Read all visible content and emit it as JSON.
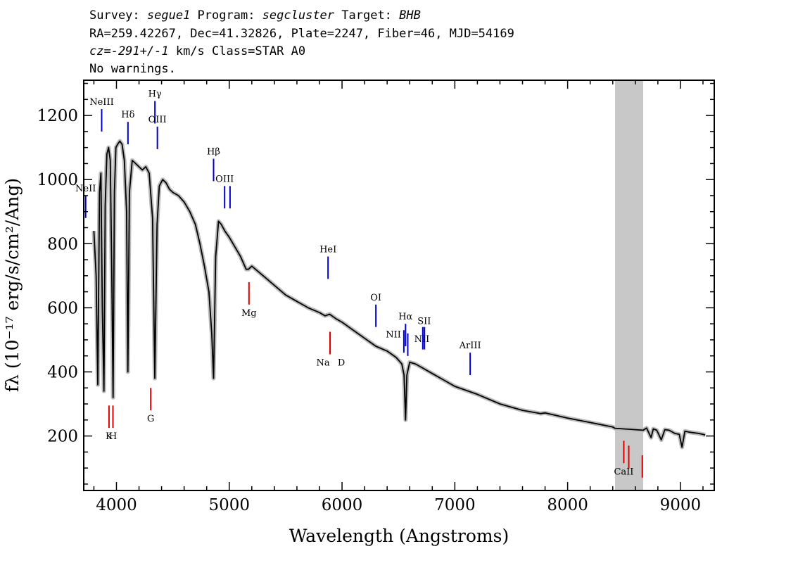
{
  "header": {
    "line1": [
      {
        "text": "Survey: ",
        "italic": false
      },
      {
        "text": "segue1",
        "italic": true
      },
      {
        "text": " Program: ",
        "italic": false
      },
      {
        "text": "segcluster",
        "italic": true
      },
      {
        "text": " Target: ",
        "italic": false
      },
      {
        "text": "BHB",
        "italic": true
      }
    ],
    "line2": "RA=259.42267, Dec=41.32826, Plate=2247, Fiber=46, MJD=54169",
    "line3": [
      {
        "text": "cz=-291+/-1",
        "italic": true
      },
      {
        "text": " km/s Class=STAR A0",
        "italic": false
      }
    ],
    "line4": "No warnings."
  },
  "chart_data": {
    "type": "line",
    "xlabel": "Wavelength (Angstroms)",
    "ylabel": "fλ (10⁻¹⁷ erg/s/cm²/Ang)",
    "xlim": [
      3710,
      9300
    ],
    "ylim": [
      30,
      1310
    ],
    "x_ticks": [
      4000,
      5000,
      6000,
      7000,
      8000,
      9000
    ],
    "y_ticks": [
      200,
      400,
      600,
      800,
      1000,
      1200
    ],
    "masked_region": [
      8420,
      8670
    ],
    "spectrum": {
      "x": [
        3800,
        3820,
        3835,
        3850,
        3862,
        3875,
        3889,
        3900,
        3915,
        3930,
        3945,
        3958,
        3970,
        3982,
        3995,
        4010,
        4030,
        4050,
        4070,
        4090,
        4101,
        4115,
        4140,
        4170,
        4200,
        4230,
        4260,
        4290,
        4320,
        4340,
        4360,
        4380,
        4410,
        4440,
        4470,
        4500,
        4550,
        4600,
        4650,
        4700,
        4740,
        4780,
        4820,
        4845,
        4861,
        4880,
        4905,
        4930,
        4960,
        5000,
        5050,
        5100,
        5150,
        5170,
        5200,
        5300,
        5400,
        5500,
        5600,
        5700,
        5800,
        5850,
        5890,
        5950,
        6000,
        6100,
        6200,
        6300,
        6400,
        6480,
        6530,
        6550,
        6563,
        6575,
        6600,
        6650,
        6700,
        6800,
        6900,
        7000,
        7200,
        7400,
        7600,
        7760,
        7800,
        8000,
        8200,
        8400,
        8420,
        8670,
        8700,
        8740,
        8760,
        8790,
        8830,
        8862,
        8900,
        8950,
        8990,
        9014,
        9040,
        9080,
        9120,
        9160,
        9200,
        9220
      ],
      "y": [
        840,
        700,
        360,
        960,
        1020,
        600,
        340,
        920,
        1080,
        1100,
        1060,
        720,
        320,
        960,
        1100,
        1110,
        1120,
        1110,
        1060,
        900,
        400,
        960,
        1060,
        1050,
        1040,
        1030,
        1040,
        1020,
        880,
        380,
        860,
        980,
        1000,
        990,
        970,
        960,
        950,
        930,
        900,
        860,
        800,
        730,
        650,
        520,
        380,
        760,
        870,
        860,
        840,
        820,
        790,
        760,
        720,
        720,
        730,
        700,
        670,
        640,
        620,
        600,
        585,
        575,
        580,
        565,
        555,
        530,
        505,
        480,
        465,
        445,
        425,
        390,
        250,
        390,
        430,
        425,
        415,
        395,
        375,
        355,
        330,
        300,
        280,
        270,
        272,
        256,
        242,
        228,
        224,
        218,
        225,
        195,
        222,
        218,
        188,
        220,
        218,
        208,
        205,
        165,
        215,
        212,
        210,
        208,
        205,
        203
      ]
    },
    "lines": [
      {
        "label": "NeII",
        "x": 3727,
        "color": "#0000cc",
        "y_range": [
          880,
          950
        ],
        "label_pos": "above"
      },
      {
        "label": "NeIII",
        "x": 3869,
        "color": "#0000cc",
        "y_range": [
          1150,
          1220
        ],
        "label_pos": "above"
      },
      {
        "label": "Hδ",
        "x": 4102,
        "color": "#0000cc",
        "y_range": [
          1110,
          1180
        ],
        "label_pos": "above"
      },
      {
        "label": "Hγ",
        "x": 4341,
        "color": "#0000cc",
        "y_range": [
          1175,
          1245
        ],
        "label_pos": "above"
      },
      {
        "label": "OIII",
        "x": 4363,
        "color": "#0000cc",
        "y_range": [
          1095,
          1165
        ],
        "label_pos": "above"
      },
      {
        "label": "Hβ",
        "x": 4861,
        "color": "#0000cc",
        "y_range": [
          995,
          1065
        ],
        "label_pos": "above"
      },
      {
        "label": "OIII",
        "x": 4959,
        "color": "#0000cc",
        "y_range": [
          910,
          980
        ],
        "label_pos": "above"
      },
      {
        "label": "",
        "x": 5007,
        "color": "#0000cc",
        "y_range": [
          910,
          980
        ],
        "label_pos": "none"
      },
      {
        "label": "HeI",
        "x": 5876,
        "color": "#0000cc",
        "y_range": [
          690,
          760
        ],
        "label_pos": "above"
      },
      {
        "label": "OI",
        "x": 6300,
        "color": "#0000cc",
        "y_range": [
          540,
          610
        ],
        "label_pos": "above"
      },
      {
        "label": "NII",
        "x": 6548,
        "color": "#0000cc",
        "y_range": [
          460,
          530
        ],
        "label_pos": "left"
      },
      {
        "label": "Hα",
        "x": 6563,
        "color": "#0000cc",
        "y_range": [
          480,
          550
        ],
        "label_pos": "above"
      },
      {
        "label": "",
        "x": 6583,
        "color": "#0000cc",
        "y_range": [
          450,
          520
        ],
        "label_pos": "none"
      },
      {
        "label": "NII",
        "x": 6583,
        "color": "#0000cc",
        "y_range": [
          450,
          520
        ],
        "label_pos": "right-float"
      },
      {
        "label": "SII",
        "x": 6716,
        "color": "#0000cc",
        "y_range": [
          470,
          540
        ],
        "label_pos": "above-right"
      },
      {
        "label": "",
        "x": 6731,
        "color": "#0000cc",
        "y_range": [
          470,
          540
        ],
        "label_pos": "none"
      },
      {
        "label": "ArIII",
        "x": 7136,
        "color": "#0000cc",
        "y_range": [
          390,
          460
        ],
        "label_pos": "above"
      },
      {
        "label": "K",
        "x": 3934,
        "color": "#dd0000",
        "y_range": [
          225,
          295
        ],
        "label_pos": "below"
      },
      {
        "label": "H",
        "x": 3969,
        "color": "#dd0000",
        "y_range": [
          225,
          295
        ],
        "label_pos": "below"
      },
      {
        "label": "G",
        "x": 4304,
        "color": "#dd0000",
        "y_range": [
          280,
          350
        ],
        "label_pos": "below"
      },
      {
        "label": "Mg",
        "x": 5175,
        "color": "#dd0000",
        "y_range": [
          610,
          680
        ],
        "label_pos": "below"
      },
      {
        "label": "Na",
        "x": 5894,
        "color": "#dd0000",
        "y_range": [
          455,
          525
        ],
        "label_pos": "below-left"
      },
      {
        "label": "D",
        "x": 5894,
        "color": "#dd0000",
        "y_range": [
          455,
          525
        ],
        "label_pos": "below-right"
      },
      {
        "label": "CaII",
        "x": 8498,
        "color": "#dd0000",
        "y_range": [
          115,
          185
        ],
        "label_pos": "below"
      },
      {
        "label": "",
        "x": 8542,
        "color": "#dd0000",
        "y_range": [
          100,
          170
        ],
        "label_pos": "none"
      },
      {
        "label": "",
        "x": 8662,
        "color": "#dd0000",
        "y_range": [
          70,
          140
        ],
        "label_pos": "none"
      }
    ]
  }
}
